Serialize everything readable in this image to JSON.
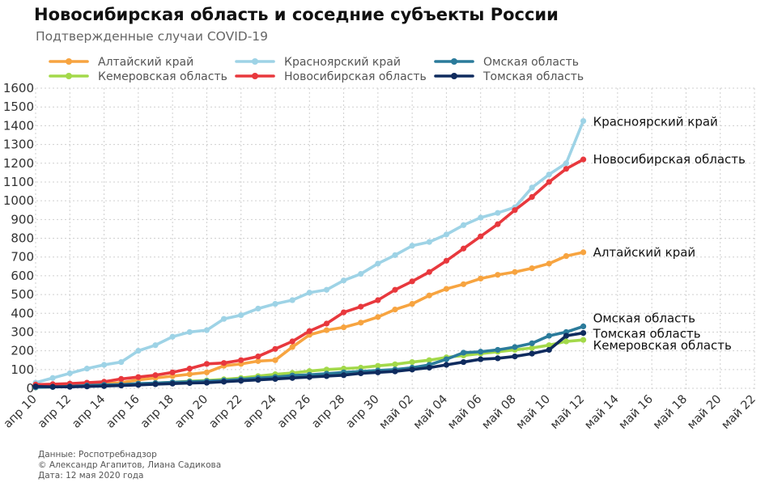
{
  "title": "Новосибирская область и соседние субъекты России",
  "subtitle": "Подтвержденные случаи COVID-19",
  "footer": {
    "source": "Данные: Роспотребнадзор",
    "authors": "© Александр Агапитов, Лиана Садикова",
    "date": "Дата: 12 мая 2020 года"
  },
  "chart_data": {
    "type": "line",
    "title": "Новосибирская область и соседние субъекты России",
    "subtitle": "Подтвержденные случаи COVID-19",
    "xlabel": "",
    "ylabel": "",
    "ylim": [
      0,
      1600
    ],
    "y_ticks": [
      0,
      100,
      200,
      300,
      400,
      500,
      600,
      700,
      800,
      900,
      1000,
      1100,
      1200,
      1300,
      1400,
      1500,
      1600
    ],
    "x_ticks": [
      "апр 10",
      "апр 12",
      "апр 14",
      "апр 16",
      "апр 18",
      "апр 20",
      "апр 22",
      "апр 24",
      "апр 26",
      "апр 28",
      "апр 30",
      "май 02",
      "май 04",
      "май 06",
      "май 08",
      "май 10",
      "май 12",
      "май 14",
      "май 16",
      "май 18",
      "май 20",
      "май 22"
    ],
    "x_tick_days": [
      0,
      2,
      4,
      6,
      8,
      10,
      12,
      14,
      16,
      18,
      20,
      22,
      24,
      26,
      28,
      30,
      32,
      34,
      36,
      38,
      40,
      42
    ],
    "x_range_days": [
      0,
      42
    ],
    "x_start_date": "2020-04-10",
    "grid": true,
    "legend_position": "top",
    "series": [
      {
        "name": "Алтайский край",
        "color": "#f7a440",
        "start_day": 0,
        "values": [
          5,
          8,
          12,
          20,
          25,
          30,
          45,
          55,
          65,
          75,
          85,
          120,
          130,
          145,
          150,
          220,
          285,
          310,
          325,
          350,
          380,
          420,
          450,
          495,
          530,
          555,
          585,
          605,
          620,
          640,
          665,
          705,
          725
        ],
        "end_label": "Алтайский край"
      },
      {
        "name": "Кемеровская область",
        "color": "#a3d94a",
        "start_day": 0,
        "values": [
          5,
          8,
          10,
          12,
          15,
          18,
          22,
          28,
          32,
          38,
          42,
          48,
          55,
          65,
          75,
          82,
          92,
          100,
          105,
          110,
          120,
          128,
          140,
          150,
          165,
          175,
          185,
          195,
          205,
          215,
          230,
          250,
          258
        ],
        "end_label": "Кемеровская область"
      },
      {
        "name": "Красноярский край",
        "color": "#9ed3e6",
        "start_day": 0,
        "values": [
          30,
          55,
          80,
          105,
          125,
          140,
          200,
          230,
          275,
          300,
          310,
          370,
          390,
          425,
          450,
          470,
          510,
          525,
          575,
          610,
          665,
          710,
          760,
          780,
          820,
          870,
          910,
          935,
          965,
          1070,
          1140,
          1200,
          1425
        ],
        "end_label": "Красноярский край"
      },
      {
        "name": "Новосибирская область",
        "color": "#e8383d",
        "start_day": 0,
        "values": [
          20,
          22,
          25,
          30,
          35,
          50,
          60,
          70,
          85,
          105,
          130,
          135,
          150,
          170,
          210,
          250,
          305,
          345,
          405,
          435,
          470,
          525,
          570,
          620,
          680,
          745,
          810,
          875,
          950,
          1020,
          1100,
          1170,
          1220
        ],
        "end_label": "Новосибирская область"
      },
      {
        "name": "Омская область",
        "color": "#2b7b9b",
        "start_day": 0,
        "values": [
          5,
          7,
          10,
          15,
          18,
          20,
          25,
          28,
          32,
          35,
          38,
          42,
          48,
          55,
          60,
          68,
          72,
          78,
          85,
          90,
          95,
          100,
          110,
          125,
          155,
          190,
          195,
          205,
          220,
          240,
          280,
          300,
          330
        ],
        "end_label": "Омская область"
      },
      {
        "name": "Томская область",
        "color": "#0f2b5e",
        "start_day": 0,
        "values": [
          10,
          8,
          8,
          10,
          12,
          15,
          18,
          22,
          25,
          28,
          30,
          35,
          40,
          45,
          50,
          55,
          60,
          65,
          70,
          80,
          85,
          90,
          100,
          110,
          125,
          140,
          155,
          160,
          170,
          185,
          205,
          280,
          295
        ],
        "end_label": "Томская область"
      }
    ]
  }
}
